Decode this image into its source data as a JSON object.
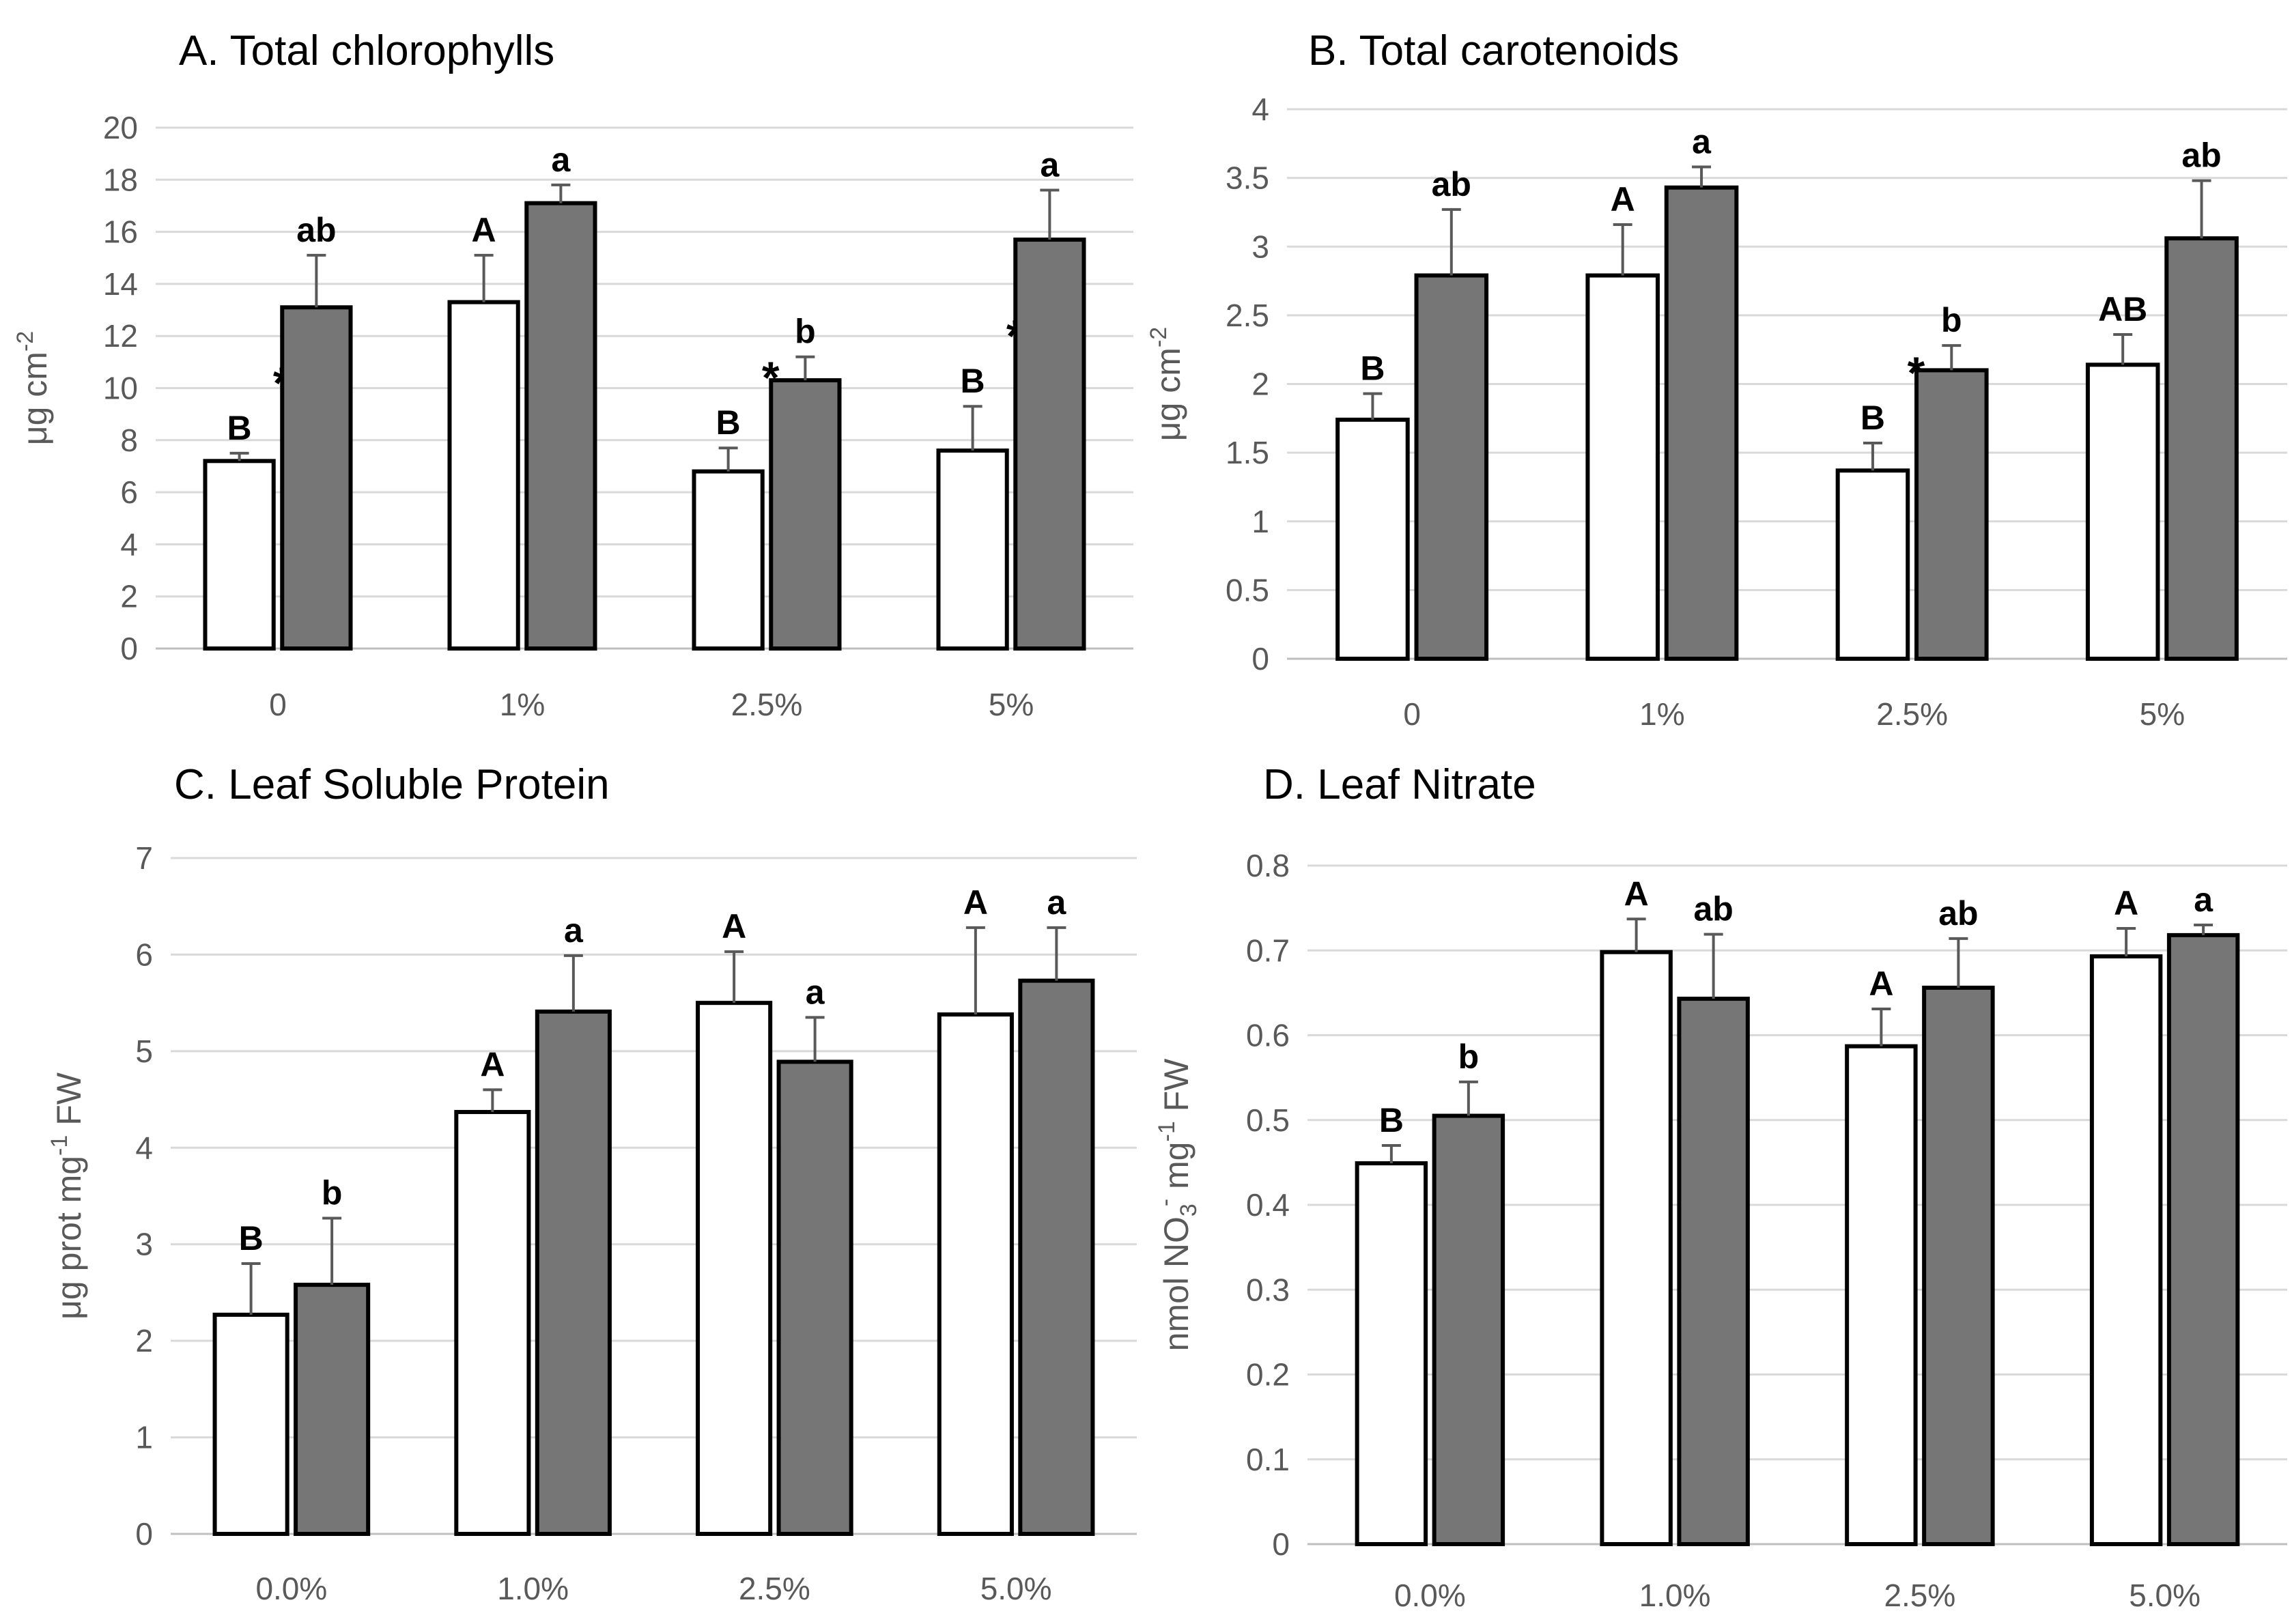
{
  "chart_data": [
    {
      "type": "bar",
      "title": "A. Total chlorophylls",
      "ylabel": "μg cm-2",
      "ylabel_parts": [
        "μg cm",
        "-2",
        ""
      ],
      "ylim": [
        0,
        20
      ],
      "yticks": [
        0,
        2,
        4,
        6,
        8,
        10,
        12,
        14,
        16,
        18,
        20
      ],
      "categories": [
        "0",
        "1%",
        "2.5%",
        "5%"
      ],
      "series": [
        {
          "name": "white",
          "values": [
            7.2,
            13.3,
            6.8,
            7.6
          ],
          "errors": [
            0.3,
            1.8,
            0.9,
            1.7
          ],
          "labels": [
            "B",
            "A",
            "B",
            "B"
          ],
          "stars": [
            true,
            false,
            true,
            true
          ]
        },
        {
          "name": "grey",
          "values": [
            13.1,
            17.1,
            10.3,
            15.7
          ],
          "errors": [
            2.0,
            0.7,
            0.9,
            1.9
          ],
          "labels": [
            "ab",
            "a",
            "b",
            "a"
          ],
          "stars": [
            false,
            false,
            false,
            false
          ]
        }
      ]
    },
    {
      "type": "bar",
      "title": "B. Total carotenoids",
      "ylabel": "μg cm-2",
      "ylabel_parts": [
        "μg cm",
        "-2",
        ""
      ],
      "ylim": [
        0,
        4
      ],
      "yticks": [
        0,
        0.5,
        1,
        1.5,
        2,
        2.5,
        3,
        3.5,
        4
      ],
      "categories": [
        "0",
        "1%",
        "2.5%",
        "5%"
      ],
      "series": [
        {
          "name": "white",
          "values": [
            1.74,
            2.79,
            1.37,
            2.14
          ],
          "errors": [
            0.19,
            0.37,
            0.2,
            0.22
          ],
          "labels": [
            "B",
            "A",
            "B",
            "AB"
          ],
          "stars": [
            false,
            false,
            true,
            false
          ]
        },
        {
          "name": "grey",
          "values": [
            2.79,
            3.43,
            2.1,
            3.06
          ],
          "errors": [
            0.48,
            0.15,
            0.18,
            0.42
          ],
          "labels": [
            "ab",
            "a",
            "b",
            "ab"
          ],
          "stars": [
            false,
            false,
            false,
            false
          ]
        }
      ]
    },
    {
      "type": "bar",
      "title": "C. Leaf Soluble Protein",
      "ylabel": "μg prot mg-1 FW",
      "ylabel_parts": [
        "μg prot mg",
        "-1",
        " FW"
      ],
      "ylim": [
        0,
        7
      ],
      "yticks": [
        0,
        1,
        2,
        3,
        4,
        5,
        6,
        7
      ],
      "categories": [
        "0.0%",
        "1.0%",
        "2.5%",
        "5.0%"
      ],
      "series": [
        {
          "name": "white",
          "values": [
            2.27,
            4.37,
            5.5,
            5.38
          ],
          "errors": [
            0.53,
            0.23,
            0.53,
            0.9
          ],
          "labels": [
            "B",
            "A",
            "A",
            "A"
          ],
          "stars": [
            false,
            false,
            false,
            false
          ]
        },
        {
          "name": "grey",
          "values": [
            2.58,
            5.41,
            4.89,
            5.73
          ],
          "errors": [
            0.69,
            0.58,
            0.46,
            0.55
          ],
          "labels": [
            "b",
            "a",
            "a",
            "a"
          ],
          "stars": [
            false,
            false,
            false,
            false
          ]
        }
      ]
    },
    {
      "type": "bar",
      "title": "D. Leaf Nitrate",
      "ylabel": "nmol NO3- mg-1 FW",
      "ylabel_parts": [
        "nmol NO",
        "3",
        "-",
        " mg",
        "-1",
        " FW"
      ],
      "ylim": [
        0,
        0.8
      ],
      "yticks": [
        0,
        0.1,
        0.2,
        0.3,
        0.4,
        0.5,
        0.6,
        0.7,
        0.8
      ],
      "categories": [
        "0.0%",
        "1.0%",
        "2.5%",
        "5.0%"
      ],
      "series": [
        {
          "name": "white",
          "values": [
            0.449,
            0.698,
            0.587,
            0.693
          ],
          "errors": [
            0.021,
            0.039,
            0.044,
            0.033
          ],
          "labels": [
            "B",
            "A",
            "A",
            "A"
          ],
          "stars": [
            false,
            false,
            false,
            false
          ]
        },
        {
          "name": "grey",
          "values": [
            0.505,
            0.643,
            0.656,
            0.718
          ],
          "errors": [
            0.04,
            0.076,
            0.058,
            0.012
          ],
          "labels": [
            "b",
            "ab",
            "ab",
            "a"
          ],
          "stars": [
            false,
            false,
            false,
            false
          ]
        }
      ]
    }
  ]
}
